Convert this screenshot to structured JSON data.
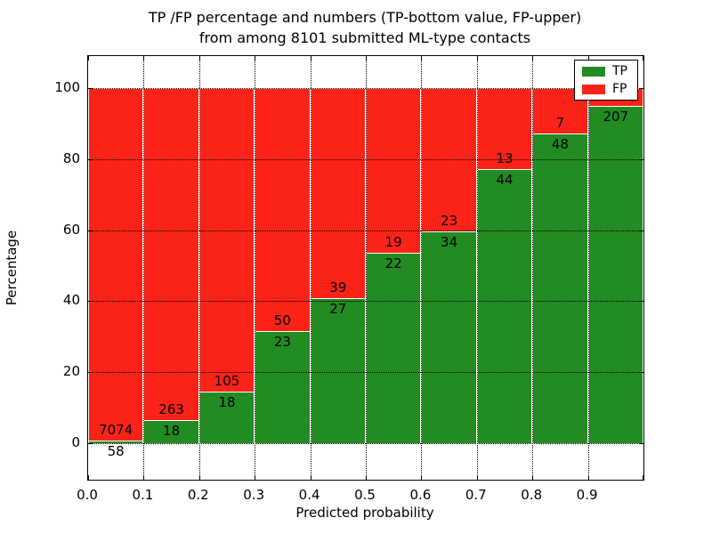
{
  "chart_data": {
    "type": "bar",
    "subtype": "stacked-percentage-histogram",
    "title_lines": [
      "TP /FP percentage and numbers (TP-bottom value, FP-upper)",
      "from among 8101 submitted ML-type contacts"
    ],
    "xlabel": "Predicted probability",
    "ylabel": "Percentage",
    "x_tick_labels": [
      "0.0",
      "0.1",
      "0.2",
      "0.3",
      "0.4",
      "0.5",
      "0.6",
      "0.7",
      "0.8",
      "0.9"
    ],
    "y_ticks": [
      0,
      20,
      40,
      60,
      80,
      100
    ],
    "y_tick_labels": [
      "0",
      "20",
      "40",
      "60",
      "80",
      "100"
    ],
    "ylim": [
      -10.3,
      109.0
    ],
    "xlim": [
      0.0,
      1.0
    ],
    "grid_style": "dotted",
    "bin_width": 0.1,
    "total_contacts": 8101,
    "categories": [
      "0.0-0.1",
      "0.1-0.2",
      "0.2-0.3",
      "0.3-0.4",
      "0.4-0.5",
      "0.5-0.6",
      "0.6-0.7",
      "0.7-0.8",
      "0.8-0.9",
      "0.9-1.0"
    ],
    "series": [
      {
        "name": "TP",
        "color": "#228b22",
        "counts": [
          58,
          18,
          18,
          23,
          27,
          22,
          34,
          44,
          48,
          207
        ],
        "pct": [
          0.81,
          6.41,
          14.63,
          31.51,
          40.91,
          53.66,
          59.65,
          77.19,
          87.27,
          95.0
        ]
      },
      {
        "name": "FP",
        "color": "#fb2318",
        "counts": [
          7074,
          263,
          105,
          50,
          39,
          19,
          23,
          13,
          7,
          null
        ],
        "pct": [
          99.19,
          93.59,
          85.37,
          68.49,
          59.09,
          46.34,
          40.35,
          22.81,
          12.73,
          5.0
        ]
      }
    ],
    "legend_position": "upper-right"
  }
}
